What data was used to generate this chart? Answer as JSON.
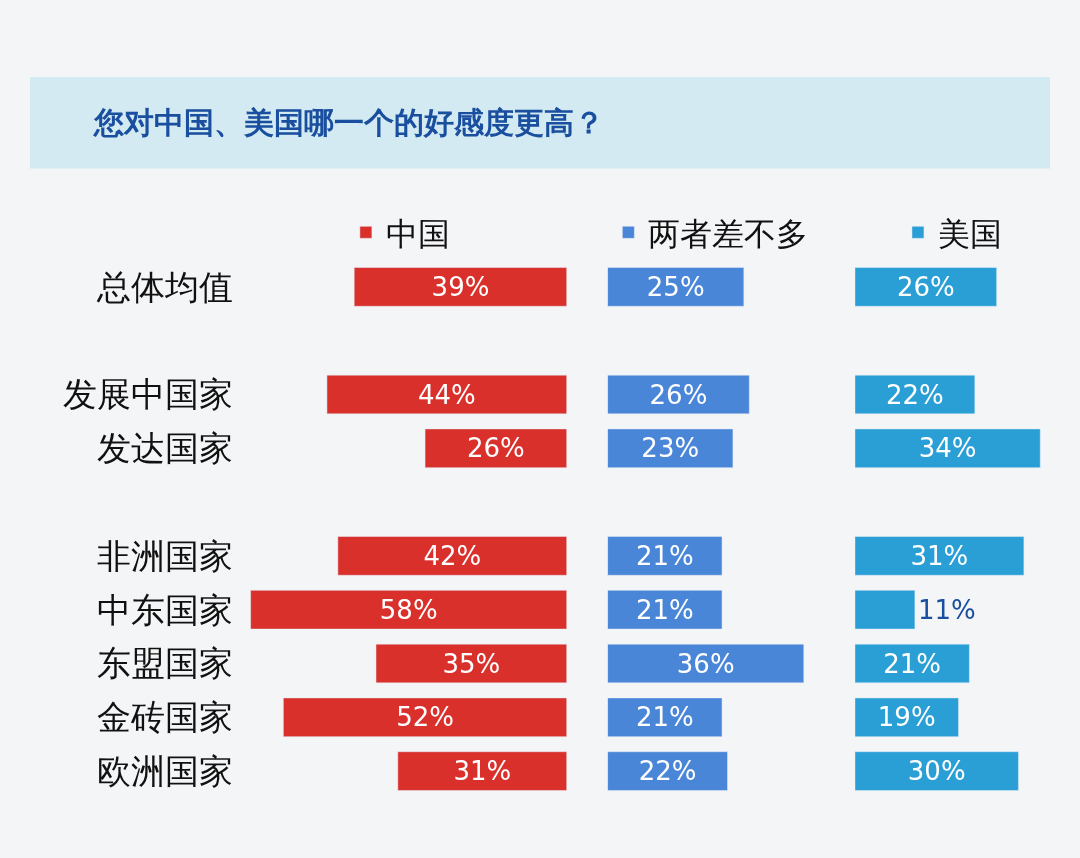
{
  "chart_data": [
    {
      "type": "bar",
      "orientation": "horizontal",
      "title": "您对中国、美国哪一个的好感度更高？",
      "categories": [
        "总体均值",
        null,
        "发展中国家",
        "发达国家",
        null,
        "非洲国家",
        "中东国家",
        "东盟国家",
        "金砖国家",
        "欧洲国家"
      ],
      "series": [
        {
          "name": "中国",
          "color": "#d9302c",
          "values": [
            39,
            null,
            44,
            26,
            null,
            42,
            58,
            35,
            52,
            31
          ],
          "value_labels": [
            "39%",
            null,
            "44%",
            "26%",
            null,
            "42%",
            "58%",
            "35%",
            "52%",
            "31%"
          ]
        }
      ],
      "tick_labels": "y",
      "legend": "top"
    },
    {
      "type": "bar",
      "orientation": "horizontal",
      "series": [
        {
          "name": "两者差不多",
          "color": "#4a86d8",
          "values": [
            25,
            null,
            26,
            23,
            null,
            21,
            21,
            36,
            21,
            22
          ],
          "value_labels": [
            "25%",
            null,
            "26%",
            "23%",
            null,
            "21%",
            "21%",
            "36%",
            "21%",
            "22%"
          ]
        }
      ],
      "tick_labels": false,
      "legend": "top"
    },
    {
      "type": "bar",
      "orientation": "horizontal",
      "series": [
        {
          "name": "美国",
          "color": "#2a9fd6",
          "values": [
            26,
            null,
            22,
            34,
            null,
            31,
            11,
            21,
            19,
            30
          ],
          "value_labels": [
            "26%",
            null,
            "22%",
            "34%",
            null,
            "31%",
            "11%",
            "21%",
            "19%",
            "30%"
          ]
        }
      ],
      "tick_labels": false,
      "legend": "top"
    }
  ]
}
